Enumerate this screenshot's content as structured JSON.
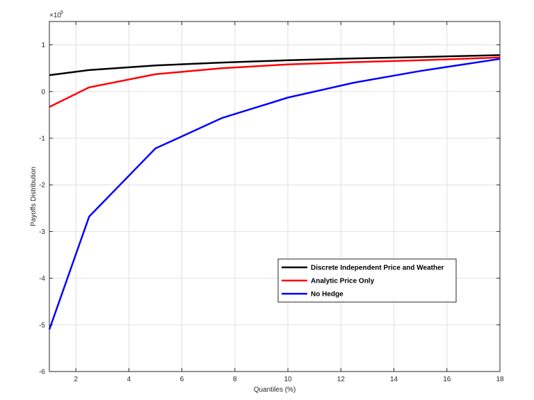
{
  "chart_data": {
    "type": "line",
    "xlabel": "Quantiles (%)",
    "ylabel": "Payoffs Distribution",
    "y_multiplier_label": "×10",
    "y_multiplier_exponent": "5",
    "xlim": [
      1,
      18
    ],
    "ylim": [
      -6,
      1.5
    ],
    "xticks": [
      2,
      4,
      6,
      8,
      10,
      12,
      14,
      16,
      18
    ],
    "yticks": [
      -6,
      -5,
      -4,
      -3,
      -2,
      -1,
      0,
      1
    ],
    "grid": true,
    "legend_position": "lower-right",
    "series": [
      {
        "name": "Discrete Independent Price and Weather",
        "color": "#000000",
        "x": [
          1,
          2.5,
          5,
          7.5,
          10,
          12.5,
          15,
          18
        ],
        "y": [
          0.35,
          0.46,
          0.56,
          0.62,
          0.67,
          0.71,
          0.74,
          0.78
        ]
      },
      {
        "name": "Analytic Price Only",
        "color": "#ff0000",
        "x": [
          1,
          2.5,
          5,
          7.5,
          10,
          12.5,
          15,
          18
        ],
        "y": [
          -0.33,
          0.09,
          0.37,
          0.5,
          0.58,
          0.63,
          0.67,
          0.73
        ]
      },
      {
        "name": "No Hedge",
        "color": "#0000ff",
        "x": [
          1,
          2.5,
          5,
          7.5,
          10,
          12.5,
          15,
          18
        ],
        "y": [
          -5.1,
          -2.68,
          -1.22,
          -0.57,
          -0.13,
          0.19,
          0.44,
          0.7
        ]
      }
    ]
  }
}
